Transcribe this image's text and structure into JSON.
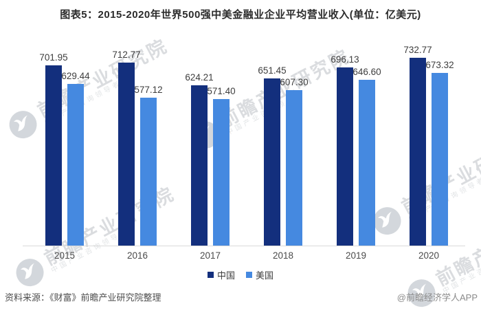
{
  "title": "图表5：2015-2020年世界500强中美金融业企业平均营业收入(单位：亿美元)",
  "chart_data": {
    "type": "bar",
    "title": "图表5：2015-2020年世界500强中美金融业企业平均营业收入(单位：亿美元)",
    "categories": [
      "2015",
      "2016",
      "2017",
      "2018",
      "2019",
      "2020"
    ],
    "series": [
      {
        "name": "中国",
        "color": "#132F7D",
        "values": [
          701.95,
          712.77,
          624.21,
          651.45,
          696.13,
          732.77
        ]
      },
      {
        "name": "美国",
        "color": "#4589E0",
        "values": [
          629.44,
          577.12,
          571.4,
          607.3,
          646.6,
          673.32
        ]
      }
    ],
    "xlabel": "",
    "ylabel": "",
    "unit": "亿美元",
    "ylim": [
      0,
      760
    ],
    "grid": false,
    "legend_position": "bottom",
    "value_labels": true,
    "value_label_decimals": 2
  },
  "footer": {
    "source": "资料来源：《财富》前瞻产业研究院整理",
    "credit": "@前瞻经济学人APP"
  },
  "watermark": {
    "text": "前瞻产业研究院",
    "subtext": "中国产业咨询领导者",
    "logo": "qianzhan-bird-logo"
  }
}
